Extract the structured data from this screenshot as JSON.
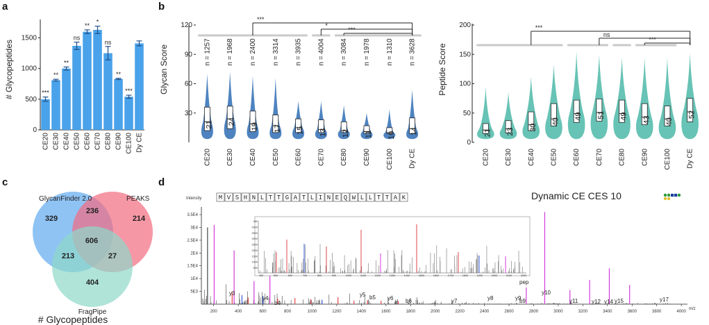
{
  "panels": {
    "a": "a",
    "b": "b",
    "c": "c",
    "d": "d"
  },
  "chart_data": [
    {
      "type": "bar",
      "panel": "a",
      "ylabel": "# Glycopeptides",
      "categories": [
        "CE20",
        "CE30",
        "CE40",
        "CE50",
        "CE60",
        "CE70",
        "CE80",
        "CE90",
        "CE100",
        "Dy CE"
      ],
      "values": [
        500,
        810,
        1000,
        1370,
        1600,
        1630,
        1250,
        830,
        540,
        1410
      ],
      "errors": [
        35,
        15,
        25,
        60,
        30,
        60,
        110,
        10,
        25,
        40
      ],
      "significance": [
        "***",
        "**",
        "**",
        "ns",
        "**",
        "*",
        "ns",
        "**",
        "***",
        ""
      ],
      "ylim": [
        0,
        1800
      ],
      "yticks": [
        "0",
        "500",
        "1000",
        "1500"
      ],
      "color": "#4aa3ea"
    },
    {
      "type": "violin",
      "panel": "b-left",
      "ylabel": "Glycan Score",
      "categories": [
        "CE20",
        "CE30",
        "CE40",
        "CE50",
        "CE60",
        "CE70",
        "CE80",
        "CE90",
        "CE100",
        "Dy CE"
      ],
      "n": [
        "n = 1257",
        "n = 1968",
        "n = 2400",
        "n = 3314",
        "n = 3935",
        "n = 4004",
        "n = 3084",
        "n = 1978",
        "n = 1310",
        "n = 3628"
      ],
      "medians": [
        21,
        24,
        19,
        17,
        15,
        13,
        12,
        11,
        10,
        14
      ],
      "q1": [
        12,
        14,
        11,
        10,
        10,
        10,
        10,
        9,
        9,
        9
      ],
      "q3": [
        36,
        37,
        32,
        28,
        24,
        23,
        21,
        17,
        15,
        25
      ],
      "max": [
        70,
        72,
        68,
        66,
        42,
        42,
        38,
        30,
        34,
        54
      ],
      "ylim": [
        0,
        120
      ],
      "yticks": [
        "30",
        "60",
        "90",
        "120"
      ],
      "brackets": [
        "***",
        "*",
        "***"
      ],
      "color": "#2f6db5"
    },
    {
      "type": "violin",
      "panel": "b-right",
      "ylabel": "Peptide Score",
      "categories": [
        "CE20",
        "CE30",
        "CE40",
        "CE50",
        "CE60",
        "CE70",
        "CE80",
        "CE90",
        "CE100",
        "Dy CE"
      ],
      "medians": [
        21,
        23,
        30,
        40,
        49,
        51,
        49,
        43,
        40,
        52
      ],
      "q1": [
        15,
        16,
        20,
        28,
        34,
        36,
        34,
        30,
        28,
        35
      ],
      "q3": [
        32,
        37,
        52,
        66,
        72,
        74,
        72,
        66,
        62,
        75
      ],
      "max": [
        95,
        86,
        112,
        133,
        155,
        150,
        145,
        145,
        145,
        152
      ],
      "ylim": [
        0,
        200
      ],
      "yticks": [
        "0",
        "50",
        "100",
        "150",
        "200"
      ],
      "brackets": [
        "***",
        "ns",
        "***"
      ],
      "color": "#4cb8a8"
    },
    {
      "type": "venn",
      "panel": "c",
      "sets": [
        "GlycanFinder 2.0",
        "PEAKS",
        "FragPipe"
      ],
      "regions": {
        "g_only": "329",
        "p_only": "214",
        "f_only": "404",
        "gp": "236",
        "gf": "213",
        "pf": "27",
        "all": "606"
      },
      "title": "# Glycopeptides"
    },
    {
      "type": "spectrum",
      "panel": "d",
      "title": "Dynamic CE  CES 10",
      "ylabel": "Intensity",
      "xlabel": "m/z",
      "sequence": [
        "M",
        "V",
        "S",
        "H",
        "N",
        "L",
        "T",
        "T",
        "G",
        "A",
        "T",
        "L",
        "I",
        "N",
        "E",
        "Q",
        "W",
        "L",
        "L",
        "T",
        "T",
        "A",
        "K"
      ],
      "yticks": [
        "5E3",
        "1E4",
        "1.5E4",
        "2E4",
        "2.5E4",
        "3E4",
        "3.5E4"
      ],
      "xticks": [
        "200",
        "400",
        "600",
        "800",
        "1000",
        "1200",
        "1400",
        "1600",
        "1800",
        "2000",
        "2200",
        "2400",
        "2600",
        "2800",
        "3000",
        "3200",
        "3400",
        "3600",
        "3800",
        "4000"
      ],
      "ion_labels": [
        "y3",
        "y4",
        "b4",
        "y5",
        "b5",
        "y6",
        "b6",
        "y7",
        "y8",
        "b9",
        "y9",
        "y10",
        "y11",
        "y12",
        "y14",
        "y15",
        "y17",
        "pep"
      ],
      "inset_xticks": [
        "400",
        "500",
        "600",
        "700",
        "800",
        "900",
        "1000",
        "1100",
        "1200",
        "1300",
        "1400",
        "1500",
        "1600",
        "1700",
        "1800",
        "1900",
        "2000",
        "2100",
        "2200"
      ],
      "inset_yticks": [
        "500",
        "1000",
        "1500",
        "2000",
        "2500",
        "3000",
        "3500",
        "4000",
        "450"
      ]
    }
  ]
}
